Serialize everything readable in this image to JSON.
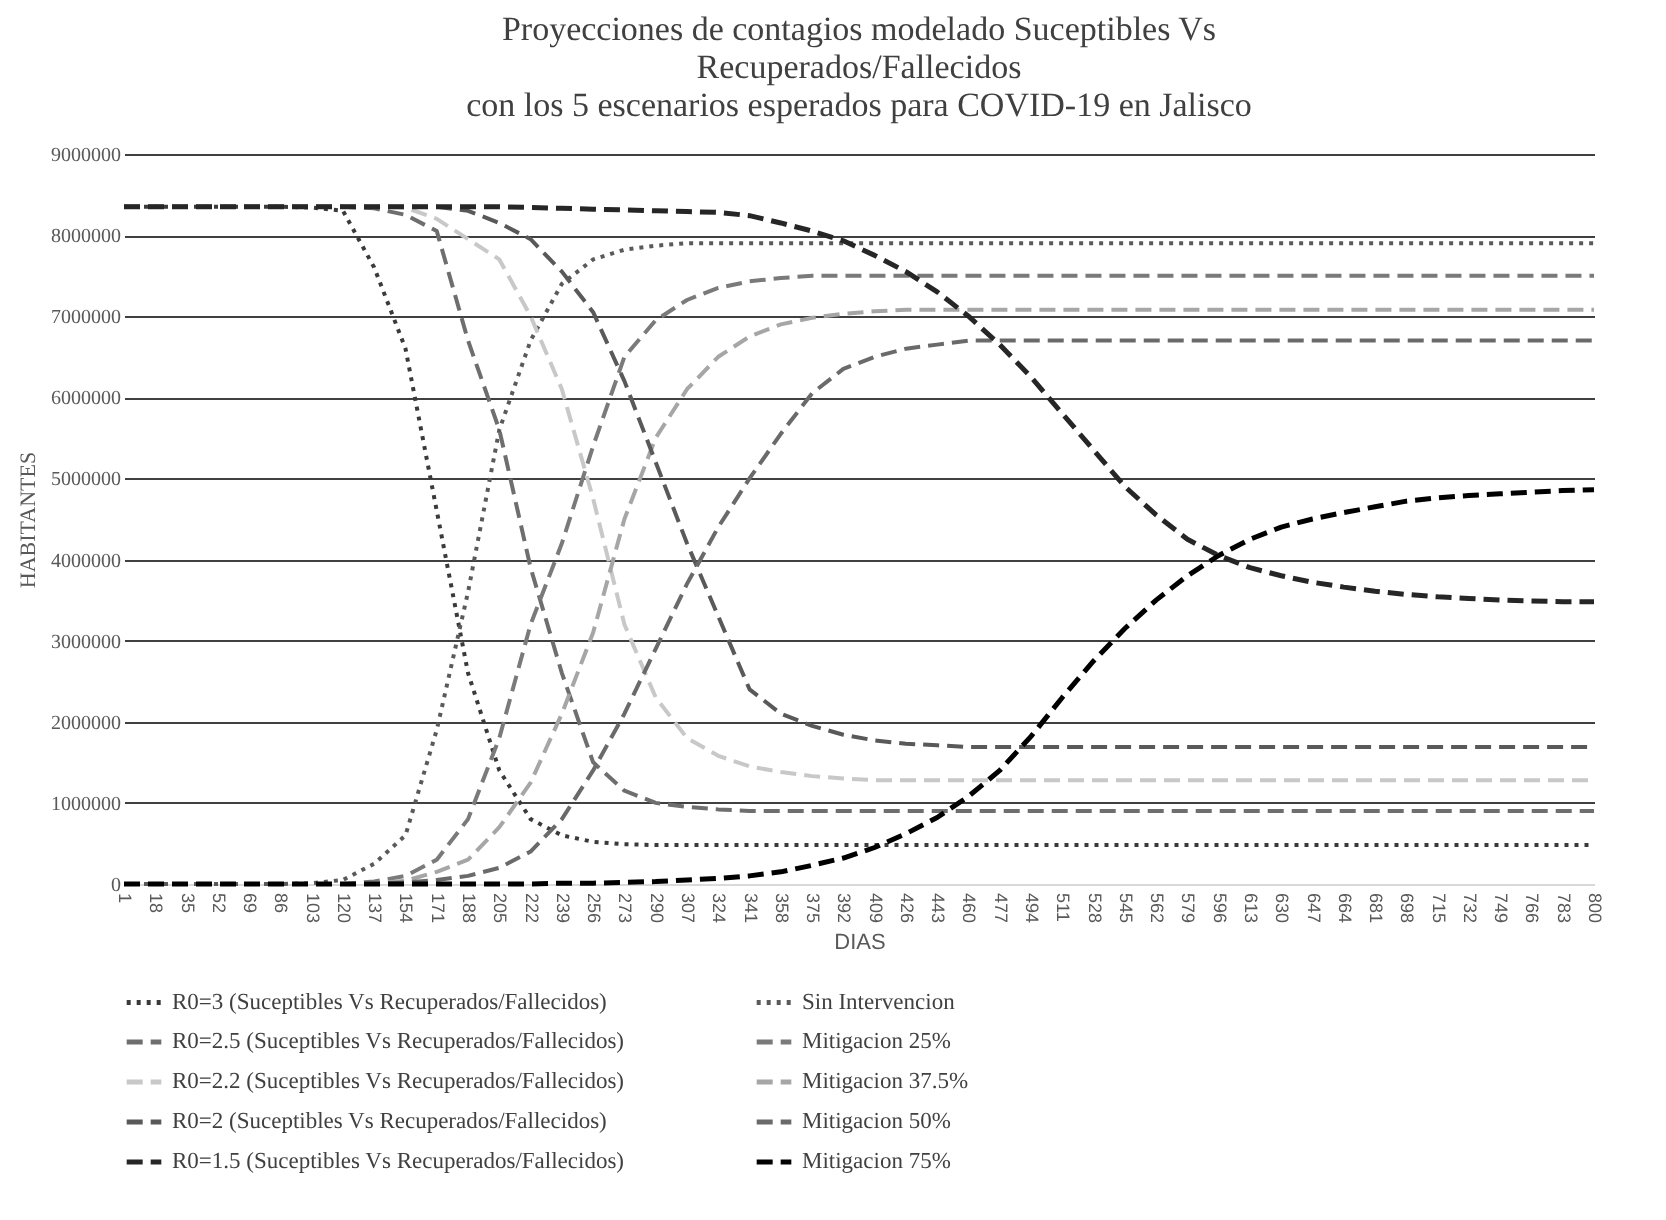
{
  "chart_data": {
    "type": "line",
    "title": [
      "Proyecciones de contagios modelado Suceptibles Vs",
      "Recuperados/Fallecidos",
      "con los 5 escenarios esperados para COVID-19 en Jalisco"
    ],
    "xlabel": "DIAS",
    "ylabel": "HABITANTES",
    "categories": [
      "1",
      "18",
      "35",
      "52",
      "69",
      "86",
      "103",
      "120",
      "137",
      "154",
      "171",
      "188",
      "205",
      "222",
      "239",
      "256",
      "273",
      "290",
      "307",
      "324",
      "341",
      "358",
      "375",
      "392",
      "409",
      "426",
      "443",
      "460",
      "477",
      "494",
      "511",
      "528",
      "545",
      "562",
      "579",
      "596",
      "613",
      "630",
      "647",
      "664",
      "681",
      "698",
      "715",
      "732",
      "749",
      "766",
      "783",
      "800"
    ],
    "ylim": [
      0,
      9000000
    ],
    "yticks": [
      0,
      1000000,
      2000000,
      3000000,
      4000000,
      5000000,
      6000000,
      7000000,
      8000000,
      9000000
    ],
    "grid": "y",
    "legend": "bottom",
    "series": [
      {
        "name": "R0=3 (Suceptibles Vs Recuperados/Fallecidos)",
        "color": "#3a3a3a",
        "line_style": "dotted",
        "values": [
          8350000,
          8350000,
          8350000,
          8350000,
          8350000,
          8350000,
          8340000,
          8300000,
          7600000,
          6600000,
          4600000,
          2600000,
          1400000,
          800000,
          600000,
          520000,
          490000,
          480000,
          480000,
          480000,
          480000,
          480000,
          480000,
          480000,
          480000,
          480000,
          480000,
          480000,
          480000,
          480000,
          480000,
          480000,
          480000,
          480000,
          480000,
          480000,
          480000,
          480000,
          480000,
          480000,
          480000,
          480000,
          480000,
          480000,
          480000,
          480000,
          480000,
          480000
        ]
      },
      {
        "name": "Sin Intervencion",
        "color": "#5a5a5a",
        "line_style": "dotted",
        "values": [
          0,
          0,
          0,
          0,
          0,
          0,
          10000,
          50000,
          250000,
          600000,
          1900000,
          3600000,
          5600000,
          6700000,
          7400000,
          7700000,
          7820000,
          7870000,
          7900000,
          7900000,
          7900000,
          7900000,
          7900000,
          7900000,
          7900000,
          7900000,
          7900000,
          7900000,
          7900000,
          7900000,
          7900000,
          7900000,
          7900000,
          7900000,
          7900000,
          7900000,
          7900000,
          7900000,
          7900000,
          7900000,
          7900000,
          7900000,
          7900000,
          7900000,
          7900000,
          7900000,
          7900000,
          7900000
        ]
      },
      {
        "name": "R0=2.5 (Suceptibles Vs Recuperados/Fallecidos)",
        "color": "#6e6e6e",
        "line_style": "dashed",
        "values": [
          8350000,
          8350000,
          8350000,
          8350000,
          8350000,
          8350000,
          8350000,
          8350000,
          8330000,
          8250000,
          8050000,
          6700000,
          5600000,
          3900000,
          2600000,
          1500000,
          1150000,
          1000000,
          950000,
          920000,
          900000,
          900000,
          900000,
          900000,
          900000,
          900000,
          900000,
          900000,
          900000,
          900000,
          900000,
          900000,
          900000,
          900000,
          900000,
          900000,
          900000,
          900000,
          900000,
          900000,
          900000,
          900000,
          900000,
          900000,
          900000,
          900000,
          900000,
          900000
        ]
      },
      {
        "name": "Mitigacion 25%",
        "color": "#7a7a7a",
        "line_style": "dashed",
        "values": [
          0,
          0,
          0,
          0,
          0,
          0,
          0,
          0,
          30000,
          100000,
          300000,
          800000,
          1800000,
          3200000,
          4200000,
          5400000,
          6500000,
          6950000,
          7200000,
          7350000,
          7430000,
          7470000,
          7500000,
          7500000,
          7500000,
          7500000,
          7500000,
          7500000,
          7500000,
          7500000,
          7500000,
          7500000,
          7500000,
          7500000,
          7500000,
          7500000,
          7500000,
          7500000,
          7500000,
          7500000,
          7500000,
          7500000,
          7500000,
          7500000,
          7500000,
          7500000,
          7500000,
          7500000
        ]
      },
      {
        "name": "R0=2.2 (Suceptibles Vs Recuperados/Fallecidos)",
        "color": "#c8c8c8",
        "line_style": "dashed",
        "values": [
          8350000,
          8350000,
          8350000,
          8350000,
          8350000,
          8350000,
          8350000,
          8350000,
          8350000,
          8340000,
          8200000,
          7950000,
          7700000,
          7000000,
          6100000,
          4750000,
          3200000,
          2300000,
          1800000,
          1580000,
          1450000,
          1380000,
          1330000,
          1300000,
          1280000,
          1280000,
          1280000,
          1280000,
          1280000,
          1280000,
          1280000,
          1280000,
          1280000,
          1280000,
          1280000,
          1280000,
          1280000,
          1280000,
          1280000,
          1280000,
          1280000,
          1280000,
          1280000,
          1280000,
          1280000,
          1280000,
          1280000,
          1280000
        ]
      },
      {
        "name": "Mitigacion 37.5%",
        "color": "#a6a6a6",
        "line_style": "dashed",
        "values": [
          0,
          0,
          0,
          0,
          0,
          0,
          0,
          0,
          10000,
          40000,
          150000,
          300000,
          700000,
          1250000,
          2100000,
          3100000,
          4500000,
          5500000,
          6100000,
          6500000,
          6750000,
          6900000,
          6980000,
          7030000,
          7060000,
          7080000,
          7080000,
          7080000,
          7080000,
          7080000,
          7080000,
          7080000,
          7080000,
          7080000,
          7080000,
          7080000,
          7080000,
          7080000,
          7080000,
          7080000,
          7080000,
          7080000,
          7080000,
          7080000,
          7080000,
          7080000,
          7080000,
          7080000
        ]
      },
      {
        "name": "R0=2 (Suceptibles Vs Recuperados/Fallecidos)",
        "color": "#595959",
        "line_style": "dashed",
        "values": [
          8350000,
          8350000,
          8350000,
          8350000,
          8350000,
          8350000,
          8350000,
          8350000,
          8350000,
          8350000,
          8350000,
          8300000,
          8150000,
          7950000,
          7550000,
          7050000,
          6200000,
          5200000,
          4200000,
          3300000,
          2400000,
          2100000,
          1950000,
          1840000,
          1770000,
          1730000,
          1710000,
          1690000,
          1690000,
          1690000,
          1690000,
          1690000,
          1690000,
          1690000,
          1690000,
          1690000,
          1690000,
          1690000,
          1690000,
          1690000,
          1690000,
          1690000,
          1690000,
          1690000,
          1690000,
          1690000,
          1690000,
          1690000
        ]
      },
      {
        "name": "Mitigacion 50%",
        "color": "#6a6a6a",
        "line_style": "dashed",
        "values": [
          0,
          0,
          0,
          0,
          0,
          0,
          0,
          0,
          0,
          20000,
          50000,
          100000,
          200000,
          400000,
          800000,
          1400000,
          2100000,
          2900000,
          3700000,
          4400000,
          5000000,
          5550000,
          6050000,
          6350000,
          6500000,
          6600000,
          6650000,
          6700000,
          6700000,
          6700000,
          6700000,
          6700000,
          6700000,
          6700000,
          6700000,
          6700000,
          6700000,
          6700000,
          6700000,
          6700000,
          6700000,
          6700000,
          6700000,
          6700000,
          6700000,
          6700000,
          6700000,
          6700000
        ]
      },
      {
        "name": "R0=1.5 (Suceptibles Vs Recuperados/Fallecidos)",
        "color": "#262626",
        "line_style": "dashed",
        "values": [
          8350000,
          8350000,
          8350000,
          8350000,
          8350000,
          8350000,
          8350000,
          8350000,
          8350000,
          8350000,
          8350000,
          8350000,
          8350000,
          8340000,
          8330000,
          8320000,
          8310000,
          8300000,
          8290000,
          8280000,
          8240000,
          8150000,
          8050000,
          7930000,
          7750000,
          7550000,
          7300000,
          7000000,
          6650000,
          6250000,
          5800000,
          5350000,
          4900000,
          4550000,
          4250000,
          4050000,
          3900000,
          3800000,
          3720000,
          3660000,
          3610000,
          3570000,
          3540000,
          3520000,
          3500000,
          3490000,
          3480000,
          3480000
        ]
      },
      {
        "name": "Mitigacion 75%",
        "color": "#000000",
        "line_style": "dashed",
        "values": [
          0,
          0,
          0,
          0,
          0,
          0,
          0,
          0,
          0,
          0,
          0,
          0,
          0,
          0,
          10000,
          10000,
          20000,
          30000,
          50000,
          70000,
          100000,
          150000,
          230000,
          320000,
          450000,
          620000,
          820000,
          1080000,
          1400000,
          1820000,
          2300000,
          2750000,
          3150000,
          3500000,
          3800000,
          4050000,
          4250000,
          4400000,
          4500000,
          4580000,
          4650000,
          4720000,
          4760000,
          4790000,
          4810000,
          4830000,
          4850000,
          4860000
        ]
      }
    ]
  }
}
